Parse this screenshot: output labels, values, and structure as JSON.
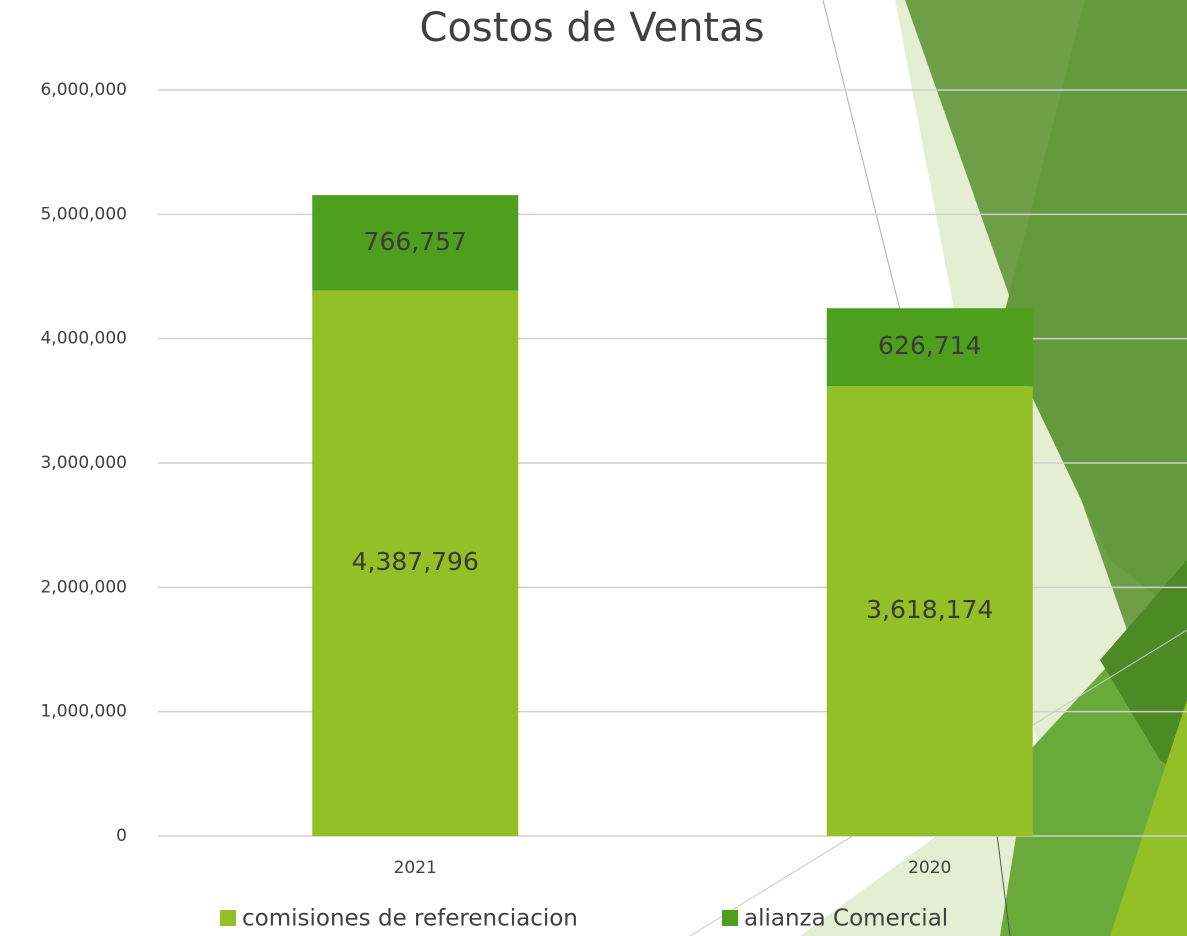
{
  "chart_data": {
    "type": "stacked_bar",
    "title": "Costos de Ventas",
    "categories": [
      "2021",
      "2020"
    ],
    "series": [
      {
        "name": "comisiones de referenciacion",
        "color": "#92c026",
        "values": [
          4387796,
          3618174
        ],
        "value_labels": [
          "4,387,796",
          "3,618,174"
        ]
      },
      {
        "name": "alianza Comercial",
        "color": "#4f9f1f",
        "values": [
          766757,
          626714
        ],
        "value_labels": [
          "766,757",
          "626,714"
        ]
      }
    ],
    "ylim": [
      0,
      6000000
    ],
    "yticks": [
      0,
      {
        "value": 1000000,
        "label": "1,000,000"
      },
      {
        "value": 2000000,
        "label": "2,000,000"
      },
      {
        "value": 3000000,
        "label": "3,000,000"
      },
      {
        "value": 4000000,
        "label": "4,000,000"
      },
      {
        "value": 5000000,
        "label": "5,000,000"
      },
      {
        "value": 6000000,
        "label": "6,000,000"
      }
    ],
    "grid": true,
    "legend": "bottom"
  }
}
